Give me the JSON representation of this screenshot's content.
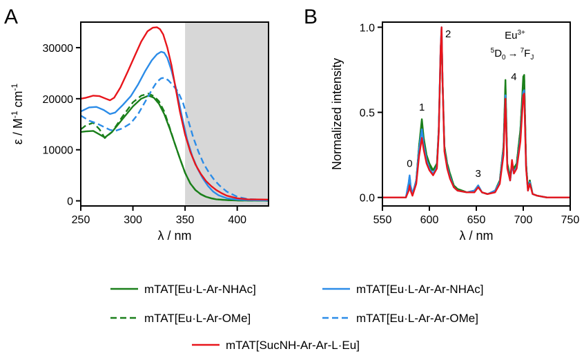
{
  "chart_data": [
    {
      "panel": "A",
      "type": "line",
      "xlabel": "λ / nm",
      "ylabel": "ε / M⁻¹ cm⁻¹",
      "xlim": [
        250,
        430
      ],
      "ylim": [
        -1000,
        35000
      ],
      "xticks": [
        250,
        300,
        350,
        400
      ],
      "yticks": [
        0,
        10000,
        20000,
        30000
      ],
      "shaded_region": [
        350,
        430
      ],
      "series": [
        {
          "name": "mTAT[Eu·L-Ar-NHAc]",
          "color": "#1a7f1a",
          "dash": "solid",
          "x": [
            250,
            255,
            262,
            268,
            273,
            280,
            290,
            300,
            308,
            315,
            320,
            325,
            330,
            335,
            340,
            345,
            350,
            355,
            360,
            365,
            370,
            375,
            380,
            390,
            400,
            410,
            430
          ],
          "y": [
            13500,
            13600,
            13700,
            13000,
            12400,
            13500,
            16000,
            18500,
            20000,
            20600,
            20200,
            19000,
            17000,
            14300,
            11300,
            8300,
            5500,
            3400,
            2100,
            1300,
            800,
            500,
            300,
            150,
            80,
            50,
            30
          ]
        },
        {
          "name": "mTAT[Eu·L-Ar-OMe]",
          "color": "#1a7f1a",
          "dash": "dashed",
          "x": [
            250,
            255,
            262,
            268,
            273,
            280,
            290,
            300,
            308,
            315,
            320,
            325,
            330,
            335,
            340,
            345,
            350,
            355,
            360,
            365,
            370,
            375,
            380,
            390,
            400,
            410,
            430
          ],
          "y": [
            14000,
            14800,
            15300,
            14000,
            12300,
            13500,
            16500,
            19300,
            20600,
            21000,
            20500,
            19500,
            17500,
            14500,
            11300,
            8300,
            5500,
            3400,
            2100,
            1300,
            800,
            500,
            300,
            150,
            80,
            50,
            30
          ]
        },
        {
          "name": "mTAT[Eu·L-Ar-Ar-NHAc]",
          "color": "#2b8ce8",
          "dash": "solid",
          "x": [
            250,
            258,
            265,
            272,
            278,
            283,
            290,
            298,
            305,
            312,
            318,
            323,
            327,
            330,
            333,
            337,
            342,
            347,
            352,
            357,
            362,
            367,
            372,
            377,
            382,
            390,
            400,
            410,
            430
          ],
          "y": [
            17500,
            18300,
            18400,
            17800,
            17000,
            17300,
            18700,
            20500,
            22800,
            25500,
            27500,
            28700,
            29200,
            29000,
            28000,
            25500,
            21500,
            16500,
            12000,
            8700,
            6300,
            4400,
            2900,
            1800,
            1100,
            500,
            250,
            150,
            80
          ]
        },
        {
          "name": "mTAT[Eu·L-Ar-Ar-OMe]",
          "color": "#2b8ce8",
          "dash": "dashed",
          "x": [
            250,
            258,
            265,
            272,
            278,
            283,
            290,
            298,
            305,
            312,
            318,
            323,
            327,
            330,
            334,
            338,
            343,
            348,
            353,
            358,
            363,
            368,
            373,
            378,
            383,
            390,
            400,
            410,
            430
          ],
          "y": [
            16700,
            15700,
            15200,
            14500,
            13900,
            13700,
            14200,
            15200,
            17000,
            19500,
            21700,
            23300,
            24000,
            24100,
            23600,
            22700,
            21500,
            19200,
            15800,
            12300,
            9500,
            7200,
            5500,
            4100,
            3000,
            1800,
            800,
            350,
            150
          ]
        },
        {
          "name": "mTAT[SucNH-Ar-Ar-L·Eu]",
          "color": "#e8151b",
          "dash": "solid",
          "x": [
            250,
            255,
            262,
            268,
            274,
            278,
            282,
            288,
            295,
            302,
            308,
            314,
            319,
            323,
            326,
            329,
            333,
            337,
            341,
            345,
            350,
            355,
            360,
            365,
            370,
            375,
            380,
            385,
            390,
            400,
            410,
            430
          ],
          "y": [
            20000,
            20200,
            20600,
            20500,
            20000,
            19700,
            20200,
            22200,
            25300,
            28500,
            31200,
            33200,
            33900,
            34000,
            33600,
            32600,
            30000,
            26500,
            22000,
            17500,
            13000,
            9600,
            7100,
            5300,
            3900,
            2900,
            2100,
            1500,
            1000,
            500,
            300,
            250
          ]
        }
      ],
      "legend": "bottom"
    },
    {
      "panel": "B",
      "type": "line",
      "xlabel": "λ / nm",
      "ylabel": "Normalized intensity",
      "xlim": [
        550,
        750
      ],
      "ylim": [
        -0.05,
        1.03
      ],
      "xticks": [
        550,
        600,
        650,
        700,
        750
      ],
      "yticks": [
        0.0,
        0.5,
        1.0
      ],
      "annotations": {
        "ion": "Eu",
        "ion_charge": "3+",
        "transition_main": "D",
        "transition_sup1": "5",
        "transition_sub1": "0",
        "arrow": "→",
        "transition_sup2": "7",
        "transition_main2": "F",
        "transition_sub2": "J",
        "peaks": [
          {
            "label": "0",
            "x": 579,
            "y": 0.2
          },
          {
            "label": "1",
            "x": 592,
            "y": 0.53
          },
          {
            "label": "2",
            "x": 620,
            "y": 0.96
          },
          {
            "label": "3",
            "x": 652,
            "y": 0.14
          },
          {
            "label": "4",
            "x": 690,
            "y": 0.71
          }
        ]
      },
      "series": [
        {
          "name": "mTAT[Eu·L-Ar-NHAc]",
          "color": "#1a7f1a",
          "dash": "solid",
          "x": [
            550,
            575,
            578,
            579,
            580,
            582,
            586,
            589,
            592,
            594,
            597,
            600,
            604,
            608,
            610,
            612,
            613,
            614,
            616,
            619,
            622,
            626,
            630,
            640,
            648,
            652,
            656,
            662,
            670,
            675,
            679,
            681,
            683,
            686,
            688,
            690,
            693,
            697,
            700,
            701,
            703,
            705,
            707,
            710,
            715,
            725,
            750
          ],
          "y": [
            0,
            0,
            0.06,
            0.11,
            0.06,
            0.02,
            0.1,
            0.3,
            0.46,
            0.35,
            0.25,
            0.2,
            0.16,
            0.2,
            0.4,
            0.85,
            0.97,
            0.7,
            0.3,
            0.2,
            0.14,
            0.07,
            0.05,
            0.03,
            0.04,
            0.07,
            0.03,
            0.02,
            0.04,
            0.1,
            0.3,
            0.69,
            0.2,
            0.12,
            0.2,
            0.17,
            0.2,
            0.4,
            0.71,
            0.72,
            0.2,
            0.05,
            0.1,
            0.02,
            0.01,
            0,
            0
          ]
        },
        {
          "name": "mTAT[Eu·L-Ar-OMe]",
          "color": "#1a7f1a",
          "dash": "dashed",
          "x": [
            550,
            575,
            578,
            579,
            580,
            582,
            586,
            589,
            592,
            594,
            597,
            600,
            604,
            608,
            610,
            612,
            613,
            614,
            616,
            619,
            622,
            626,
            630,
            640,
            648,
            652,
            656,
            662,
            670,
            675,
            679,
            681,
            683,
            686,
            688,
            690,
            693,
            697,
            700,
            701,
            703,
            705,
            707,
            710,
            715,
            725,
            750
          ],
          "y": [
            0,
            0,
            0.06,
            0.11,
            0.06,
            0.02,
            0.1,
            0.3,
            0.44,
            0.34,
            0.24,
            0.19,
            0.15,
            0.19,
            0.4,
            0.85,
            0.97,
            0.7,
            0.3,
            0.2,
            0.14,
            0.07,
            0.05,
            0.03,
            0.04,
            0.07,
            0.03,
            0.02,
            0.04,
            0.1,
            0.3,
            0.66,
            0.2,
            0.12,
            0.2,
            0.17,
            0.2,
            0.4,
            0.68,
            0.69,
            0.2,
            0.05,
            0.1,
            0.02,
            0.01,
            0,
            0
          ]
        },
        {
          "name": "mTAT[Eu·L-Ar-Ar-NHAc]",
          "color": "#2b8ce8",
          "dash": "solid",
          "x": [
            550,
            575,
            578,
            579,
            580,
            582,
            586,
            589,
            592,
            594,
            597,
            600,
            604,
            608,
            610,
            612,
            613,
            614,
            616,
            619,
            622,
            626,
            630,
            640,
            648,
            652,
            656,
            662,
            670,
            675,
            679,
            681,
            683,
            686,
            688,
            690,
            693,
            697,
            700,
            701,
            703,
            705,
            707,
            710,
            715,
            725,
            750
          ],
          "y": [
            0,
            0,
            0.09,
            0.13,
            0.07,
            0.02,
            0.1,
            0.28,
            0.4,
            0.31,
            0.22,
            0.17,
            0.14,
            0.18,
            0.4,
            0.88,
            1.0,
            0.7,
            0.28,
            0.18,
            0.12,
            0.06,
            0.04,
            0.03,
            0.04,
            0.07,
            0.03,
            0.02,
            0.04,
            0.09,
            0.28,
            0.6,
            0.18,
            0.1,
            0.18,
            0.15,
            0.18,
            0.35,
            0.62,
            0.63,
            0.18,
            0.04,
            0.09,
            0.02,
            0.01,
            0,
            0
          ]
        },
        {
          "name": "mTAT[Eu·L-Ar-Ar-OMe]",
          "color": "#2b8ce8",
          "dash": "dashed",
          "x": [
            550,
            575,
            578,
            579,
            580,
            582,
            586,
            589,
            592,
            594,
            597,
            600,
            604,
            608,
            610,
            612,
            613,
            614,
            616,
            619,
            622,
            626,
            630,
            640,
            648,
            652,
            656,
            662,
            670,
            675,
            679,
            681,
            683,
            686,
            688,
            690,
            693,
            697,
            700,
            701,
            703,
            705,
            707,
            710,
            715,
            725,
            750
          ],
          "y": [
            0,
            0,
            0.09,
            0.13,
            0.07,
            0.02,
            0.1,
            0.28,
            0.4,
            0.31,
            0.22,
            0.17,
            0.14,
            0.18,
            0.4,
            0.88,
            1.0,
            0.7,
            0.28,
            0.18,
            0.12,
            0.06,
            0.04,
            0.03,
            0.04,
            0.07,
            0.03,
            0.02,
            0.04,
            0.09,
            0.28,
            0.6,
            0.18,
            0.1,
            0.18,
            0.15,
            0.18,
            0.35,
            0.62,
            0.63,
            0.18,
            0.04,
            0.09,
            0.02,
            0.01,
            0,
            0
          ]
        },
        {
          "name": "mTAT[SucNH-Ar-Ar-L·Eu]",
          "color": "#e8151b",
          "dash": "solid",
          "x": [
            550,
            575,
            578,
            579,
            580,
            582,
            586,
            589,
            592,
            594,
            597,
            600,
            604,
            608,
            610,
            612,
            613,
            614,
            616,
            619,
            622,
            626,
            630,
            640,
            648,
            652,
            656,
            662,
            670,
            675,
            679,
            681,
            683,
            686,
            688,
            690,
            693,
            697,
            700,
            701,
            703,
            705,
            707,
            710,
            715,
            725,
            750
          ],
          "y": [
            0,
            0,
            0.04,
            0.07,
            0.04,
            0.01,
            0.08,
            0.24,
            0.35,
            0.28,
            0.2,
            0.16,
            0.13,
            0.17,
            0.38,
            0.87,
            1.0,
            0.7,
            0.27,
            0.17,
            0.11,
            0.06,
            0.04,
            0.03,
            0.03,
            0.06,
            0.03,
            0.02,
            0.03,
            0.08,
            0.25,
            0.58,
            0.17,
            0.1,
            0.22,
            0.14,
            0.17,
            0.33,
            0.6,
            0.61,
            0.17,
            0.04,
            0.08,
            0.02,
            0.01,
            0,
            0
          ]
        }
      ]
    }
  ],
  "panels": {
    "a": {
      "letter": "A",
      "ylabel": "ε / M",
      "ylabel_sup1": "-1",
      "ylabel_mid": " cm",
      "ylabel_sup2": "-1",
      "xlabel": "λ / nm",
      "xtick_labels": [
        "250",
        "300",
        "350",
        "400"
      ],
      "ytick_labels": [
        "0",
        "10000",
        "20000",
        "30000"
      ]
    },
    "b": {
      "letter": "B",
      "ylabel": "Normalized intensity",
      "xlabel": "λ / nm",
      "xtick_labels": [
        "550",
        "600",
        "650",
        "700",
        "750"
      ],
      "ytick_labels": [
        "0.0",
        "0.5",
        "1.0"
      ]
    }
  },
  "legend": [
    {
      "label": "mTAT[Eu·L-Ar-NHAc]",
      "color": "#1a7f1a",
      "dash": "solid"
    },
    {
      "label": "mTAT[Eu·L-Ar-Ar-NHAc]",
      "color": "#2b8ce8",
      "dash": "solid"
    },
    {
      "label": "mTAT[Eu·L-Ar-OMe]",
      "color": "#1a7f1a",
      "dash": "dashed"
    },
    {
      "label": "mTAT[Eu·L-Ar-Ar-OMe]",
      "color": "#2b8ce8",
      "dash": "dashed"
    },
    {
      "label": "mTAT[SucNH-Ar-Ar-L·Eu]",
      "color": "#e8151b",
      "dash": "solid"
    }
  ]
}
